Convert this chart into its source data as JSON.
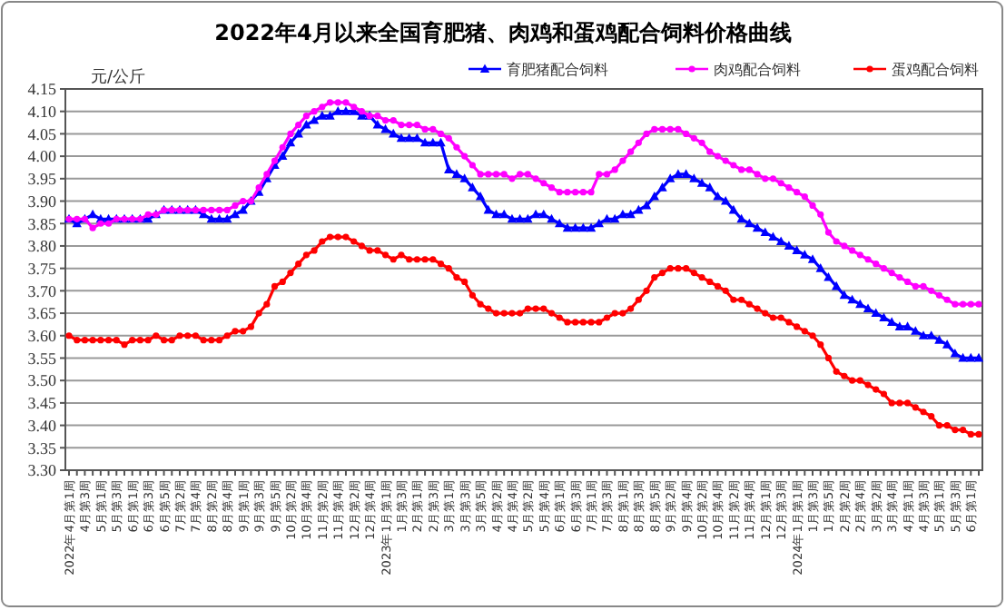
{
  "chart_data": {
    "type": "line",
    "title": "2022年4月以来全国育肥猪、肉鸡和蛋鸡配合饲料价格曲线",
    "ylabel": "元/公斤",
    "categories": [
      "2022年4月第1周",
      null,
      "4月第3周",
      null,
      "5月第1周",
      null,
      "5月第3周",
      null,
      "6月第1周",
      null,
      "6月第3周",
      null,
      "6月第5周",
      null,
      "7月第2周",
      null,
      "7月第4周",
      null,
      "8月第2周",
      null,
      "8月第4周",
      null,
      "9月第1周",
      null,
      "9月第3周",
      null,
      "9月第5周",
      null,
      "10月第2周",
      null,
      "10月第4周",
      null,
      "11月第2周",
      null,
      "11月第4周",
      null,
      "12月第2周",
      null,
      "12月第4周",
      null,
      "2023年1月第1周",
      null,
      "1月第3周",
      null,
      "2月第1周",
      null,
      "2月第3周",
      null,
      "3月第1周",
      null,
      "3月第3周",
      null,
      "3月第5周",
      null,
      "4月第2周",
      null,
      "4月第4周",
      null,
      "5月第2周",
      null,
      "5月第4周",
      null,
      "6月第1周",
      null,
      "6月第3周",
      null,
      "7月第1周",
      null,
      "7月第3周",
      null,
      "8月第1周",
      null,
      "8月第3周",
      null,
      "8月第5周",
      null,
      "9月第2周",
      null,
      "9月第4周",
      null,
      "10月第2周",
      null,
      "10月第4周",
      null,
      "11月第2周",
      null,
      "11月第4周",
      null,
      "12月第1周",
      null,
      "12月第3周",
      null,
      "2024年1月第1周",
      null,
      "1月第3周",
      null,
      "1月第5周",
      null,
      "2月第2周",
      null,
      "2月第4周",
      null,
      "3月第2周",
      null,
      "3月第4周",
      null,
      "4月第1周",
      null,
      "4月第3周",
      null,
      "5月第1周",
      null,
      "5月第3周",
      null,
      "6月第1周",
      null
    ],
    "series": [
      {
        "name": "育肥猪配合饲料",
        "color": "#0000ff",
        "marker": "triangle",
        "values": [
          3.86,
          3.85,
          3.86,
          3.87,
          3.86,
          3.86,
          3.86,
          3.86,
          3.86,
          3.86,
          3.86,
          3.87,
          3.88,
          3.88,
          3.88,
          3.88,
          3.88,
          3.87,
          3.86,
          3.86,
          3.86,
          3.87,
          3.88,
          3.9,
          3.92,
          3.95,
          3.98,
          4.0,
          4.03,
          4.05,
          4.07,
          4.08,
          4.09,
          4.09,
          4.1,
          4.1,
          4.1,
          4.09,
          4.09,
          4.07,
          4.06,
          4.05,
          4.04,
          4.04,
          4.04,
          4.03,
          4.03,
          4.03,
          3.97,
          3.96,
          3.95,
          3.93,
          3.91,
          3.88,
          3.87,
          3.87,
          3.86,
          3.86,
          3.86,
          3.87,
          3.87,
          3.86,
          3.85,
          3.84,
          3.84,
          3.84,
          3.84,
          3.85,
          3.86,
          3.86,
          3.87,
          3.87,
          3.88,
          3.89,
          3.91,
          3.93,
          3.95,
          3.96,
          3.96,
          3.95,
          3.94,
          3.93,
          3.91,
          3.9,
          3.88,
          3.86,
          3.85,
          3.84,
          3.83,
          3.82,
          3.81,
          3.8,
          3.79,
          3.78,
          3.77,
          3.75,
          3.73,
          3.71,
          3.69,
          3.68,
          3.67,
          3.66,
          3.65,
          3.64,
          3.63,
          3.62,
          3.62,
          3.61,
          3.6,
          3.6,
          3.59,
          3.58,
          3.56,
          3.55,
          3.55,
          3.55
        ]
      },
      {
        "name": "肉鸡配合饲料",
        "color": "#ff00ff",
        "marker": "circle",
        "values": [
          3.86,
          3.86,
          3.86,
          3.84,
          3.85,
          3.85,
          3.86,
          3.86,
          3.86,
          3.86,
          3.87,
          3.87,
          3.88,
          3.88,
          3.88,
          3.88,
          3.88,
          3.88,
          3.88,
          3.88,
          3.88,
          3.89,
          3.9,
          3.9,
          3.93,
          3.96,
          3.99,
          4.02,
          4.05,
          4.07,
          4.09,
          4.1,
          4.11,
          4.12,
          4.12,
          4.12,
          4.11,
          4.1,
          4.09,
          4.09,
          4.08,
          4.08,
          4.07,
          4.07,
          4.07,
          4.06,
          4.06,
          4.05,
          4.04,
          4.02,
          4.0,
          3.98,
          3.96,
          3.96,
          3.96,
          3.96,
          3.95,
          3.96,
          3.96,
          3.95,
          3.94,
          3.93,
          3.92,
          3.92,
          3.92,
          3.92,
          3.92,
          3.96,
          3.96,
          3.97,
          3.99,
          4.01,
          4.03,
          4.05,
          4.06,
          4.06,
          4.06,
          4.06,
          4.05,
          4.04,
          4.03,
          4.01,
          4.0,
          3.99,
          3.98,
          3.97,
          3.97,
          3.96,
          3.95,
          3.95,
          3.94,
          3.93,
          3.92,
          3.91,
          3.89,
          3.87,
          3.83,
          3.81,
          3.8,
          3.79,
          3.78,
          3.77,
          3.76,
          3.75,
          3.74,
          3.73,
          3.72,
          3.71,
          3.71,
          3.7,
          3.69,
          3.68,
          3.67,
          3.67,
          3.67,
          3.67
        ]
      },
      {
        "name": "蛋鸡配合饲料",
        "color": "#ff0000",
        "marker": "circle",
        "values": [
          3.6,
          3.59,
          3.59,
          3.59,
          3.59,
          3.59,
          3.59,
          3.58,
          3.59,
          3.59,
          3.59,
          3.6,
          3.59,
          3.59,
          3.6,
          3.6,
          3.6,
          3.59,
          3.59,
          3.59,
          3.6,
          3.61,
          3.61,
          3.62,
          3.65,
          3.67,
          3.71,
          3.72,
          3.74,
          3.76,
          3.78,
          3.79,
          3.81,
          3.82,
          3.82,
          3.82,
          3.81,
          3.8,
          3.79,
          3.79,
          3.78,
          3.77,
          3.78,
          3.77,
          3.77,
          3.77,
          3.77,
          3.76,
          3.75,
          3.73,
          3.72,
          3.69,
          3.67,
          3.66,
          3.65,
          3.65,
          3.65,
          3.65,
          3.66,
          3.66,
          3.66,
          3.65,
          3.64,
          3.63,
          3.63,
          3.63,
          3.63,
          3.63,
          3.64,
          3.65,
          3.65,
          3.66,
          3.68,
          3.7,
          3.73,
          3.74,
          3.75,
          3.75,
          3.75,
          3.74,
          3.73,
          3.72,
          3.71,
          3.7,
          3.68,
          3.68,
          3.67,
          3.66,
          3.65,
          3.64,
          3.64,
          3.63,
          3.62,
          3.61,
          3.6,
          3.58,
          3.55,
          3.52,
          3.51,
          3.5,
          3.5,
          3.49,
          3.48,
          3.47,
          3.45,
          3.45,
          3.45,
          3.44,
          3.43,
          3.42,
          3.4,
          3.4,
          3.39,
          3.39,
          3.38,
          3.38
        ]
      }
    ],
    "ylim": [
      3.3,
      4.15
    ],
    "yticks": [
      {
        "value": 3.3,
        "label": "3.30"
      },
      3.35,
      {
        "value": 3.4,
        "label": "3.40"
      },
      3.45,
      {
        "value": 3.5,
        "label": "3.50"
      },
      3.55,
      {
        "value": 3.6,
        "label": "3.60"
      },
      3.65,
      {
        "value": 3.7,
        "label": "3.70"
      },
      3.75,
      {
        "value": 3.8,
        "label": "3.80"
      },
      3.85,
      {
        "value": 3.9,
        "label": "3.90"
      },
      3.95,
      {
        "value": 4.0,
        "label": "4.00"
      },
      4.05,
      {
        "value": 4.1,
        "label": "4.10"
      },
      4.15
    ],
    "grid": "y",
    "legend": "top right"
  }
}
